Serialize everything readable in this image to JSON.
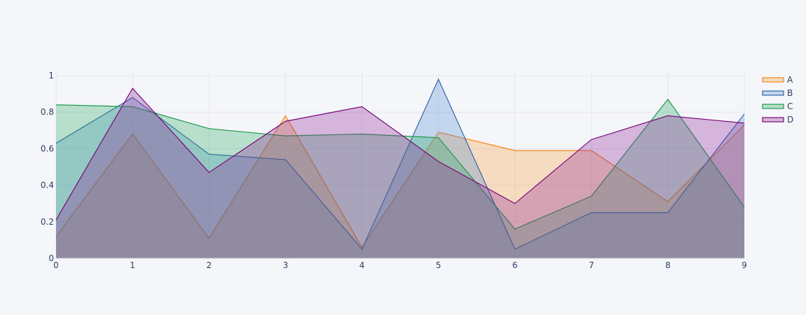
{
  "chart_data": {
    "type": "area",
    "x": [
      0,
      1,
      2,
      3,
      4,
      5,
      6,
      7,
      8,
      9
    ],
    "xticks": [
      "0",
      "1",
      "2",
      "3",
      "4",
      "5",
      "6",
      "7",
      "8",
      "9"
    ],
    "yticks": [
      "0",
      "0.2",
      "0.4",
      "0.6",
      "0.8",
      "1"
    ],
    "xlim": [
      0,
      9
    ],
    "ylim": [
      0,
      1
    ],
    "grid": true,
    "legend_position": "top-right",
    "series": [
      {
        "name": "A",
        "color": "#f58518",
        "fill": "rgba(245,155,60,0.3)",
        "values": [
          0.12,
          0.68,
          0.11,
          0.78,
          0.06,
          0.69,
          0.59,
          0.59,
          0.31,
          0.73
        ]
      },
      {
        "name": "B",
        "color": "#3366aa",
        "fill": "rgba(80,140,210,0.3)",
        "values": [
          0.63,
          0.88,
          0.57,
          0.54,
          0.05,
          0.98,
          0.05,
          0.25,
          0.25,
          0.79
        ]
      },
      {
        "name": "C",
        "color": "#1f9a4d",
        "fill": "rgba(40,170,100,0.3)",
        "values": [
          0.84,
          0.83,
          0.71,
          0.67,
          0.68,
          0.66,
          0.16,
          0.34,
          0.87,
          0.28
        ]
      },
      {
        "name": "D",
        "color": "#7a0a7a",
        "fill": "rgba(140,30,150,0.3)",
        "values": [
          0.21,
          0.93,
          0.47,
          0.75,
          0.83,
          0.53,
          0.3,
          0.65,
          0.78,
          0.74
        ]
      }
    ]
  }
}
